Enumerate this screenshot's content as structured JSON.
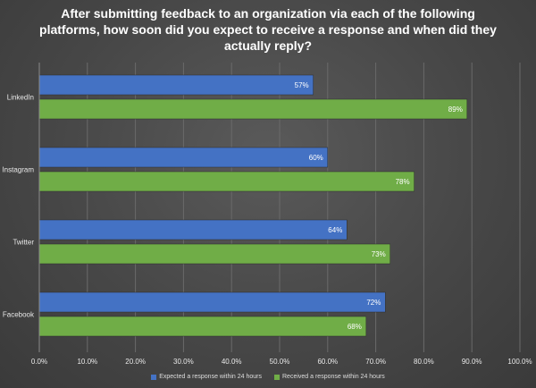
{
  "chart_data": {
    "type": "bar",
    "orientation": "horizontal",
    "title": "After submitting feedback to an organization via each of the following platforms, how soon did you expect to receive a response and when did they actually reply?",
    "categories": [
      "LinkedIn",
      "Instagram",
      "Twitter",
      "Facebook"
    ],
    "series": [
      {
        "name": "Expected a response within 24 hours",
        "color": "#4472C4",
        "values": [
          57,
          60,
          64,
          72
        ],
        "labels": [
          "57%",
          "60%",
          "64%",
          "72%"
        ]
      },
      {
        "name": "Received a response within 24 hours",
        "color": "#70AD47",
        "values": [
          89,
          78,
          73,
          68
        ],
        "labels": [
          "89%",
          "78%",
          "73%",
          "68%"
        ]
      }
    ],
    "xlim": [
      0,
      100
    ],
    "x_ticks": [
      "0.0%",
      "10.0%",
      "20.0%",
      "30.0%",
      "40.0%",
      "50.0%",
      "60.0%",
      "70.0%",
      "80.0%",
      "90.0%",
      "100.0%"
    ],
    "grid": true,
    "legend_position": "bottom"
  }
}
